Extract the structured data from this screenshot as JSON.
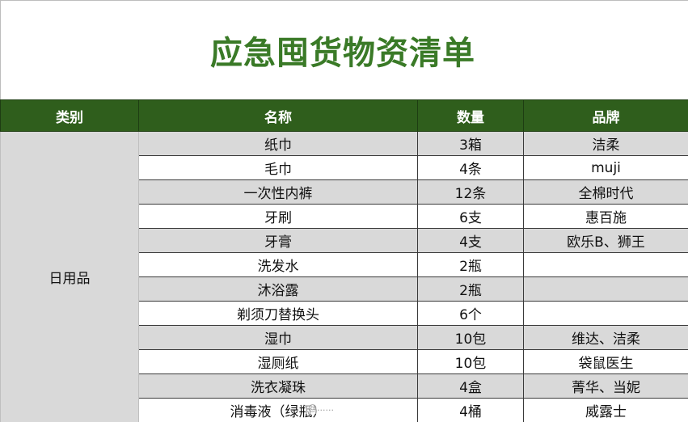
{
  "title": "应急囤货物资清单",
  "headers": {
    "category": "类别",
    "name": "名称",
    "quantity": "数量",
    "brand": "品牌"
  },
  "category_label": "日用品",
  "rows": [
    {
      "name": "纸巾",
      "quantity": "3箱",
      "brand": "洁柔"
    },
    {
      "name": "毛巾",
      "quantity": "4条",
      "brand": "muji"
    },
    {
      "name": "一次性内裤",
      "quantity": "12条",
      "brand": "全棉时代"
    },
    {
      "name": "牙刷",
      "quantity": "6支",
      "brand": "惠百施"
    },
    {
      "name": "牙膏",
      "quantity": "4支",
      "brand": "欧乐B、狮王"
    },
    {
      "name": "洗发水",
      "quantity": "2瓶",
      "brand": ""
    },
    {
      "name": "沐浴露",
      "quantity": "2瓶",
      "brand": ""
    },
    {
      "name": "剃须刀替换头",
      "quantity": "6个",
      "brand": ""
    },
    {
      "name": "湿巾",
      "quantity": "10包",
      "brand": "维达、洁柔"
    },
    {
      "name": "湿厕纸",
      "quantity": "10包",
      "brand": "袋鼠医生"
    },
    {
      "name": "洗衣凝珠",
      "quantity": "4盒",
      "brand": "菁华、当妮"
    },
    {
      "name": "消毒液（绿瓶）",
      "quantity": "4桶",
      "brand": "威露士"
    }
  ],
  "watermark": "@......",
  "colors": {
    "title_green": "#3a7a27",
    "header_green": "#2f5e1c",
    "row_gray": "#d9d9d9"
  }
}
